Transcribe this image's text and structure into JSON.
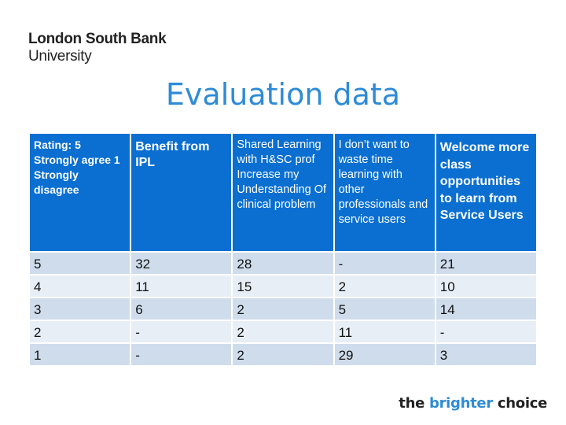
{
  "logo": {
    "line1": "London South Bank",
    "line2": "University"
  },
  "title": "Evaluation data",
  "table": {
    "headers": [
      "Rating: 5 Strongly agree 1 Strongly disagree",
      "Benefit from IPL",
      "Shared Learning with H&SC prof Increase my Understanding Of clinical problem",
      "I don’t want to waste time learning with other professionals and service users",
      "Welcome more class opportunities to learn from Service Users"
    ],
    "rows": [
      [
        "5",
        "32",
        "28",
        "-",
        "21"
      ],
      [
        "4",
        "11",
        "15",
        "2",
        "10"
      ],
      [
        "3",
        "6",
        "2",
        "5",
        "14"
      ],
      [
        "2",
        "-",
        "2",
        "11",
        "-"
      ],
      [
        "1",
        "-",
        "2",
        "29",
        "3"
      ]
    ]
  },
  "footer": {
    "part1": "the ",
    "highlight": "brighter",
    "part2": " choice"
  },
  "colors": {
    "header_bg": "#0a6fd1",
    "row_bg": "#cfdcec",
    "row_alt_bg": "#e8eef6",
    "title": "#2e8bd6"
  }
}
